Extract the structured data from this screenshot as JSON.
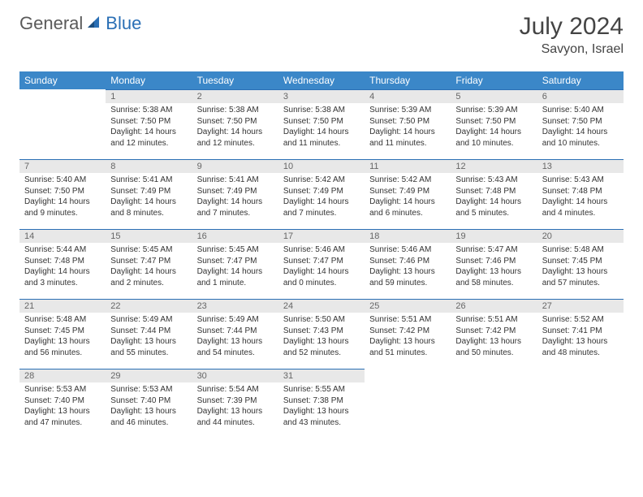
{
  "brand": {
    "part1": "General",
    "part2": "Blue"
  },
  "title": "July 2024",
  "location": "Savyon, Israel",
  "colors": {
    "header_bg": "#3b87c8",
    "header_fg": "#ffffff",
    "daynum_bg": "#e8e8e8",
    "daynum_fg": "#666666",
    "rule": "#2a6fb5",
    "body_text": "#333333",
    "title_text": "#444444",
    "page_bg": "#ffffff"
  },
  "days_of_week": [
    "Sunday",
    "Monday",
    "Tuesday",
    "Wednesday",
    "Thursday",
    "Friday",
    "Saturday"
  ],
  "weeks": [
    [
      null,
      {
        "n": "1",
        "sr": "Sunrise: 5:38 AM",
        "ss": "Sunset: 7:50 PM",
        "dl1": "Daylight: 14 hours",
        "dl2": "and 12 minutes."
      },
      {
        "n": "2",
        "sr": "Sunrise: 5:38 AM",
        "ss": "Sunset: 7:50 PM",
        "dl1": "Daylight: 14 hours",
        "dl2": "and 12 minutes."
      },
      {
        "n": "3",
        "sr": "Sunrise: 5:38 AM",
        "ss": "Sunset: 7:50 PM",
        "dl1": "Daylight: 14 hours",
        "dl2": "and 11 minutes."
      },
      {
        "n": "4",
        "sr": "Sunrise: 5:39 AM",
        "ss": "Sunset: 7:50 PM",
        "dl1": "Daylight: 14 hours",
        "dl2": "and 11 minutes."
      },
      {
        "n": "5",
        "sr": "Sunrise: 5:39 AM",
        "ss": "Sunset: 7:50 PM",
        "dl1": "Daylight: 14 hours",
        "dl2": "and 10 minutes."
      },
      {
        "n": "6",
        "sr": "Sunrise: 5:40 AM",
        "ss": "Sunset: 7:50 PM",
        "dl1": "Daylight: 14 hours",
        "dl2": "and 10 minutes."
      }
    ],
    [
      {
        "n": "7",
        "sr": "Sunrise: 5:40 AM",
        "ss": "Sunset: 7:50 PM",
        "dl1": "Daylight: 14 hours",
        "dl2": "and 9 minutes."
      },
      {
        "n": "8",
        "sr": "Sunrise: 5:41 AM",
        "ss": "Sunset: 7:49 PM",
        "dl1": "Daylight: 14 hours",
        "dl2": "and 8 minutes."
      },
      {
        "n": "9",
        "sr": "Sunrise: 5:41 AM",
        "ss": "Sunset: 7:49 PM",
        "dl1": "Daylight: 14 hours",
        "dl2": "and 7 minutes."
      },
      {
        "n": "10",
        "sr": "Sunrise: 5:42 AM",
        "ss": "Sunset: 7:49 PM",
        "dl1": "Daylight: 14 hours",
        "dl2": "and 7 minutes."
      },
      {
        "n": "11",
        "sr": "Sunrise: 5:42 AM",
        "ss": "Sunset: 7:49 PM",
        "dl1": "Daylight: 14 hours",
        "dl2": "and 6 minutes."
      },
      {
        "n": "12",
        "sr": "Sunrise: 5:43 AM",
        "ss": "Sunset: 7:48 PM",
        "dl1": "Daylight: 14 hours",
        "dl2": "and 5 minutes."
      },
      {
        "n": "13",
        "sr": "Sunrise: 5:43 AM",
        "ss": "Sunset: 7:48 PM",
        "dl1": "Daylight: 14 hours",
        "dl2": "and 4 minutes."
      }
    ],
    [
      {
        "n": "14",
        "sr": "Sunrise: 5:44 AM",
        "ss": "Sunset: 7:48 PM",
        "dl1": "Daylight: 14 hours",
        "dl2": "and 3 minutes."
      },
      {
        "n": "15",
        "sr": "Sunrise: 5:45 AM",
        "ss": "Sunset: 7:47 PM",
        "dl1": "Daylight: 14 hours",
        "dl2": "and 2 minutes."
      },
      {
        "n": "16",
        "sr": "Sunrise: 5:45 AM",
        "ss": "Sunset: 7:47 PM",
        "dl1": "Daylight: 14 hours",
        "dl2": "and 1 minute."
      },
      {
        "n": "17",
        "sr": "Sunrise: 5:46 AM",
        "ss": "Sunset: 7:47 PM",
        "dl1": "Daylight: 14 hours",
        "dl2": "and 0 minutes."
      },
      {
        "n": "18",
        "sr": "Sunrise: 5:46 AM",
        "ss": "Sunset: 7:46 PM",
        "dl1": "Daylight: 13 hours",
        "dl2": "and 59 minutes."
      },
      {
        "n": "19",
        "sr": "Sunrise: 5:47 AM",
        "ss": "Sunset: 7:46 PM",
        "dl1": "Daylight: 13 hours",
        "dl2": "and 58 minutes."
      },
      {
        "n": "20",
        "sr": "Sunrise: 5:48 AM",
        "ss": "Sunset: 7:45 PM",
        "dl1": "Daylight: 13 hours",
        "dl2": "and 57 minutes."
      }
    ],
    [
      {
        "n": "21",
        "sr": "Sunrise: 5:48 AM",
        "ss": "Sunset: 7:45 PM",
        "dl1": "Daylight: 13 hours",
        "dl2": "and 56 minutes."
      },
      {
        "n": "22",
        "sr": "Sunrise: 5:49 AM",
        "ss": "Sunset: 7:44 PM",
        "dl1": "Daylight: 13 hours",
        "dl2": "and 55 minutes."
      },
      {
        "n": "23",
        "sr": "Sunrise: 5:49 AM",
        "ss": "Sunset: 7:44 PM",
        "dl1": "Daylight: 13 hours",
        "dl2": "and 54 minutes."
      },
      {
        "n": "24",
        "sr": "Sunrise: 5:50 AM",
        "ss": "Sunset: 7:43 PM",
        "dl1": "Daylight: 13 hours",
        "dl2": "and 52 minutes."
      },
      {
        "n": "25",
        "sr": "Sunrise: 5:51 AM",
        "ss": "Sunset: 7:42 PM",
        "dl1": "Daylight: 13 hours",
        "dl2": "and 51 minutes."
      },
      {
        "n": "26",
        "sr": "Sunrise: 5:51 AM",
        "ss": "Sunset: 7:42 PM",
        "dl1": "Daylight: 13 hours",
        "dl2": "and 50 minutes."
      },
      {
        "n": "27",
        "sr": "Sunrise: 5:52 AM",
        "ss": "Sunset: 7:41 PM",
        "dl1": "Daylight: 13 hours",
        "dl2": "and 48 minutes."
      }
    ],
    [
      {
        "n": "28",
        "sr": "Sunrise: 5:53 AM",
        "ss": "Sunset: 7:40 PM",
        "dl1": "Daylight: 13 hours",
        "dl2": "and 47 minutes."
      },
      {
        "n": "29",
        "sr": "Sunrise: 5:53 AM",
        "ss": "Sunset: 7:40 PM",
        "dl1": "Daylight: 13 hours",
        "dl2": "and 46 minutes."
      },
      {
        "n": "30",
        "sr": "Sunrise: 5:54 AM",
        "ss": "Sunset: 7:39 PM",
        "dl1": "Daylight: 13 hours",
        "dl2": "and 44 minutes."
      },
      {
        "n": "31",
        "sr": "Sunrise: 5:55 AM",
        "ss": "Sunset: 7:38 PM",
        "dl1": "Daylight: 13 hours",
        "dl2": "and 43 minutes."
      },
      null,
      null,
      null
    ]
  ]
}
